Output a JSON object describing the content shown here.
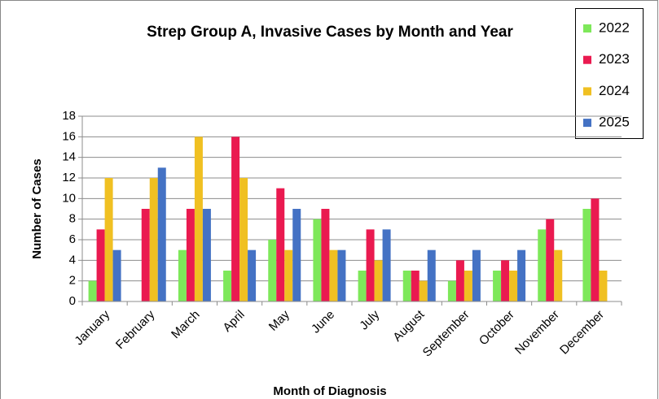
{
  "chart_data": {
    "type": "bar",
    "title": "Strep Group A, Invasive Cases by Month and Year",
    "x_label": "Month of Diagnosis",
    "y_label": "Number of Cases",
    "categories": [
      "January",
      "February",
      "March",
      "April",
      "May",
      "June",
      "July",
      "August",
      "September",
      "October",
      "November",
      "December"
    ],
    "series": [
      {
        "name": "2022",
        "color": "#7ee85a",
        "values": [
          2,
          0,
          5,
          3,
          6,
          8,
          3,
          3,
          2,
          3,
          7,
          9
        ]
      },
      {
        "name": "2023",
        "color": "#ea1a50",
        "values": [
          7,
          9,
          9,
          16,
          11,
          9,
          7,
          3,
          4,
          4,
          8,
          10
        ]
      },
      {
        "name": "2024",
        "color": "#f0c022",
        "values": [
          12,
          12,
          16,
          12,
          5,
          5,
          4,
          2,
          3,
          3,
          5,
          3
        ]
      },
      {
        "name": "2025",
        "color": "#4472c4",
        "values": [
          5,
          13,
          9,
          5,
          9,
          5,
          7,
          5,
          5,
          5,
          null,
          null
        ]
      }
    ],
    "ylim": [
      0,
      18
    ],
    "yticks": [
      0,
      2,
      4,
      6,
      8,
      10,
      12,
      14,
      16,
      18
    ],
    "grid": true,
    "legend": "top-right"
  }
}
